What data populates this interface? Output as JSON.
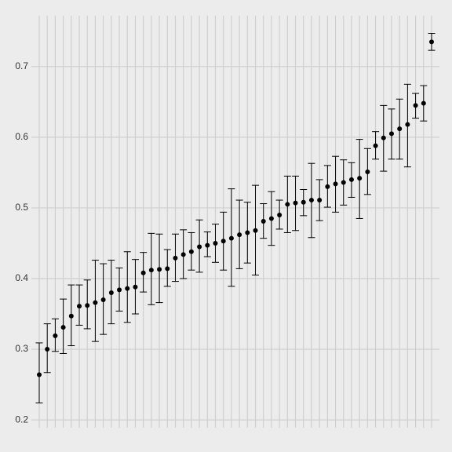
{
  "chart_data": {
    "type": "errorbar",
    "categories": [
      null,
      null,
      null,
      null,
      null,
      null,
      null,
      null,
      null,
      null,
      null,
      null,
      null,
      null,
      null,
      null,
      null,
      null,
      null,
      null,
      null,
      null,
      null,
      null,
      null,
      null,
      null,
      null,
      null,
      null,
      null,
      null,
      null,
      null,
      null,
      null,
      null,
      null,
      null,
      null,
      null,
      null,
      null,
      null,
      null,
      null,
      null,
      null,
      null,
      null
    ],
    "values": [
      0.264,
      0.3,
      0.319,
      0.331,
      0.347,
      0.361,
      0.362,
      0.366,
      0.37,
      0.38,
      0.384,
      0.386,
      0.388,
      0.408,
      0.412,
      0.413,
      0.414,
      0.429,
      0.434,
      0.438,
      0.445,
      0.447,
      0.45,
      0.453,
      0.457,
      0.462,
      0.465,
      0.468,
      0.481,
      0.485,
      0.49,
      0.505,
      0.507,
      0.508,
      0.511,
      0.511,
      0.53,
      0.534,
      0.536,
      0.54,
      0.542,
      0.551,
      0.588,
      0.599,
      0.605,
      0.612,
      0.618,
      0.645,
      0.648,
      0.735
    ],
    "lower": [
      0.224,
      0.267,
      0.297,
      0.294,
      0.305,
      0.334,
      0.329,
      0.311,
      0.321,
      0.336,
      0.354,
      0.338,
      0.35,
      0.381,
      0.363,
      0.366,
      0.389,
      0.396,
      0.4,
      0.412,
      0.409,
      0.431,
      0.423,
      0.412,
      0.389,
      0.414,
      0.422,
      0.405,
      0.457,
      0.447,
      0.47,
      0.465,
      0.468,
      0.489,
      0.458,
      0.482,
      0.501,
      0.494,
      0.504,
      0.515,
      0.485,
      0.519,
      0.569,
      0.552,
      0.569,
      0.569,
      0.558,
      0.627,
      0.623,
      0.723
    ],
    "upper": [
      0.309,
      0.336,
      0.343,
      0.371,
      0.391,
      0.391,
      0.398,
      0.426,
      0.421,
      0.426,
      0.415,
      0.438,
      0.427,
      0.437,
      0.464,
      0.463,
      0.441,
      0.463,
      0.469,
      0.465,
      0.483,
      0.466,
      0.477,
      0.494,
      0.527,
      0.511,
      0.508,
      0.532,
      0.506,
      0.523,
      0.511,
      0.545,
      0.545,
      0.526,
      0.563,
      0.54,
      0.56,
      0.573,
      0.568,
      0.564,
      0.597,
      0.584,
      0.608,
      0.645,
      0.64,
      0.654,
      0.675,
      0.662,
      0.673,
      0.747
    ],
    "color": "#000000",
    "ylim": [
      0.189,
      0.772
    ],
    "yticks": [
      0.2,
      0.3,
      0.4,
      0.5,
      0.6,
      0.7
    ],
    "grid": true
  }
}
